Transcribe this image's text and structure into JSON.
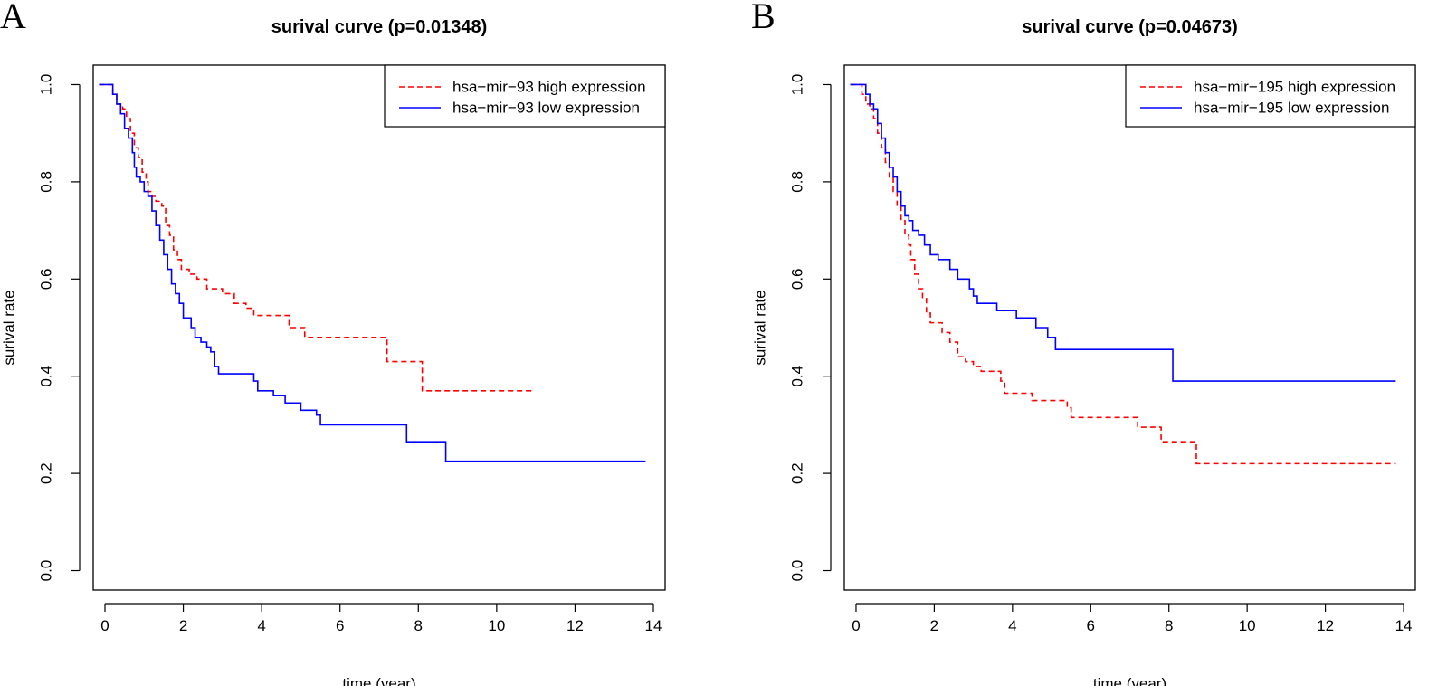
{
  "chart_data": [
    {
      "type": "line",
      "panel_label": "A",
      "title": "surival curve (p=0.01348)",
      "xlabel": "time (year)",
      "ylabel": "surival rate",
      "xlim": [
        -0.3,
        14.3
      ],
      "ylim": [
        -0.04,
        1.04
      ],
      "xticks": [
        0,
        2,
        4,
        6,
        8,
        10,
        12,
        14
      ],
      "yticks": [
        0.0,
        0.2,
        0.4,
        0.6,
        0.8,
        1.0
      ],
      "ytick_labels": [
        "0.0",
        "0.2",
        "0.4",
        "0.6",
        "0.8",
        "1.0"
      ],
      "legend_position": "top-right",
      "series": [
        {
          "name": "hsa−mir−93 high expression",
          "color": "#ff0000",
          "dash": "dashed",
          "steps": [
            [
              -0.15,
              1.0
            ],
            [
              0.15,
              1.0
            ],
            [
              0.2,
              0.98
            ],
            [
              0.3,
              0.96
            ],
            [
              0.45,
              0.95
            ],
            [
              0.55,
              0.93
            ],
            [
              0.65,
              0.9
            ],
            [
              0.75,
              0.87
            ],
            [
              0.85,
              0.85
            ],
            [
              0.95,
              0.82
            ],
            [
              1.05,
              0.8
            ],
            [
              1.1,
              0.78
            ],
            [
              1.2,
              0.77
            ],
            [
              1.3,
              0.76
            ],
            [
              1.45,
              0.75
            ],
            [
              1.55,
              0.71
            ],
            [
              1.65,
              0.69
            ],
            [
              1.75,
              0.66
            ],
            [
              1.85,
              0.64
            ],
            [
              1.95,
              0.62
            ],
            [
              2.15,
              0.61
            ],
            [
              2.35,
              0.6
            ],
            [
              2.6,
              0.58
            ],
            [
              3.0,
              0.57
            ],
            [
              3.3,
              0.55
            ],
            [
              3.6,
              0.54
            ],
            [
              3.8,
              0.525
            ],
            [
              4.7,
              0.5
            ],
            [
              5.1,
              0.48
            ],
            [
              7.2,
              0.43
            ],
            [
              8.1,
              0.37
            ],
            [
              10.9,
              0.37
            ]
          ]
        },
        {
          "name": "hsa−mir−93 low expression",
          "color": "#0000ff",
          "dash": "solid",
          "steps": [
            [
              -0.15,
              1.0
            ],
            [
              0.15,
              1.0
            ],
            [
              0.2,
              0.98
            ],
            [
              0.3,
              0.96
            ],
            [
              0.4,
              0.94
            ],
            [
              0.5,
              0.91
            ],
            [
              0.6,
              0.89
            ],
            [
              0.7,
              0.86
            ],
            [
              0.75,
              0.83
            ],
            [
              0.8,
              0.81
            ],
            [
              0.9,
              0.8
            ],
            [
              1.0,
              0.78
            ],
            [
              1.1,
              0.77
            ],
            [
              1.2,
              0.74
            ],
            [
              1.3,
              0.71
            ],
            [
              1.4,
              0.68
            ],
            [
              1.5,
              0.65
            ],
            [
              1.6,
              0.62
            ],
            [
              1.7,
              0.59
            ],
            [
              1.8,
              0.57
            ],
            [
              1.9,
              0.55
            ],
            [
              2.0,
              0.52
            ],
            [
              2.2,
              0.5
            ],
            [
              2.3,
              0.48
            ],
            [
              2.45,
              0.47
            ],
            [
              2.6,
              0.46
            ],
            [
              2.7,
              0.45
            ],
            [
              2.8,
              0.42
            ],
            [
              2.9,
              0.405
            ],
            [
              3.8,
              0.39
            ],
            [
              3.9,
              0.37
            ],
            [
              4.3,
              0.36
            ],
            [
              4.6,
              0.345
            ],
            [
              5.0,
              0.33
            ],
            [
              5.4,
              0.32
            ],
            [
              5.5,
              0.3
            ],
            [
              7.7,
              0.265
            ],
            [
              8.7,
              0.225
            ],
            [
              13.8,
              0.225
            ]
          ]
        }
      ]
    },
    {
      "type": "line",
      "panel_label": "B",
      "title": "surival curve (p=0.04673)",
      "xlabel": "time (year)",
      "ylabel": "surival rate",
      "xlim": [
        -0.3,
        14.3
      ],
      "ylim": [
        -0.04,
        1.04
      ],
      "xticks": [
        0,
        2,
        4,
        6,
        8,
        10,
        12,
        14
      ],
      "yticks": [
        0.0,
        0.2,
        0.4,
        0.6,
        0.8,
        1.0
      ],
      "ytick_labels": [
        "0.0",
        "0.2",
        "0.4",
        "0.6",
        "0.8",
        "1.0"
      ],
      "legend_position": "top-right",
      "series": [
        {
          "name": "hsa−mir−195 high expression",
          "color": "#ff0000",
          "dash": "dashed",
          "steps": [
            [
              -0.15,
              1.0
            ],
            [
              0.1,
              1.0
            ],
            [
              0.15,
              0.98
            ],
            [
              0.25,
              0.96
            ],
            [
              0.35,
              0.95
            ],
            [
              0.45,
              0.93
            ],
            [
              0.55,
              0.9
            ],
            [
              0.65,
              0.87
            ],
            [
              0.75,
              0.84
            ],
            [
              0.85,
              0.81
            ],
            [
              0.95,
              0.78
            ],
            [
              1.05,
              0.75
            ],
            [
              1.15,
              0.72
            ],
            [
              1.25,
              0.69
            ],
            [
              1.35,
              0.67
            ],
            [
              1.4,
              0.64
            ],
            [
              1.5,
              0.61
            ],
            [
              1.6,
              0.58
            ],
            [
              1.7,
              0.56
            ],
            [
              1.8,
              0.53
            ],
            [
              1.9,
              0.51
            ],
            [
              2.2,
              0.49
            ],
            [
              2.4,
              0.47
            ],
            [
              2.6,
              0.44
            ],
            [
              2.8,
              0.43
            ],
            [
              3.0,
              0.42
            ],
            [
              3.2,
              0.41
            ],
            [
              3.7,
              0.39
            ],
            [
              3.8,
              0.365
            ],
            [
              4.5,
              0.35
            ],
            [
              5.4,
              0.335
            ],
            [
              5.5,
              0.315
            ],
            [
              7.2,
              0.295
            ],
            [
              7.8,
              0.265
            ],
            [
              8.7,
              0.22
            ],
            [
              13.8,
              0.22
            ]
          ]
        },
        {
          "name": "hsa−mir−195 low expression",
          "color": "#0000ff",
          "dash": "solid",
          "steps": [
            [
              -0.15,
              1.0
            ],
            [
              0.15,
              1.0
            ],
            [
              0.25,
              0.98
            ],
            [
              0.35,
              0.96
            ],
            [
              0.45,
              0.95
            ],
            [
              0.55,
              0.92
            ],
            [
              0.65,
              0.89
            ],
            [
              0.75,
              0.86
            ],
            [
              0.85,
              0.83
            ],
            [
              0.95,
              0.81
            ],
            [
              1.05,
              0.78
            ],
            [
              1.15,
              0.75
            ],
            [
              1.25,
              0.73
            ],
            [
              1.35,
              0.72
            ],
            [
              1.45,
              0.7
            ],
            [
              1.6,
              0.69
            ],
            [
              1.75,
              0.67
            ],
            [
              1.9,
              0.65
            ],
            [
              2.1,
              0.64
            ],
            [
              2.4,
              0.62
            ],
            [
              2.6,
              0.6
            ],
            [
              2.9,
              0.58
            ],
            [
              3.0,
              0.565
            ],
            [
              3.1,
              0.55
            ],
            [
              3.6,
              0.535
            ],
            [
              4.1,
              0.52
            ],
            [
              4.6,
              0.5
            ],
            [
              4.9,
              0.48
            ],
            [
              5.1,
              0.455
            ],
            [
              8.1,
              0.39
            ],
            [
              13.8,
              0.39
            ]
          ]
        }
      ]
    }
  ]
}
